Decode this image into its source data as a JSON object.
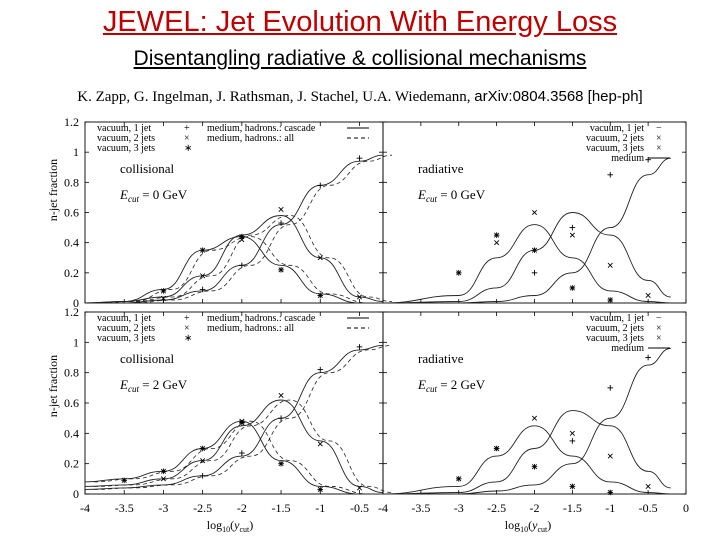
{
  "header": {
    "title": "JEWEL: Jet Evolution With Energy Loss",
    "subtitle": "Disentangling radiative & collisional mechanisms",
    "authors": "K. Zapp, G. Ingelman, J. Rathsman, J. Stachel, U.A. Wiedemann,",
    "arxiv": "arXiv:0804.3568 [hep-ph]"
  },
  "chart_data": [
    {
      "type": "line",
      "panel": "top-left",
      "title": "collisional",
      "annotation": "E_cut = 0 GeV",
      "annotation_main": "E",
      "annotation_sub": "cut",
      "annotation_rest": " = 0 GeV",
      "xlabel": "log10(ycut)",
      "ylabel": "n-jet fraction",
      "xlim": [
        -4,
        -0.2
      ],
      "ylim": [
        0,
        1.2
      ],
      "xticks": [
        "-4",
        "-3.5",
        "-3",
        "-2.5",
        "-2",
        "-1.5",
        "-1",
        "-0.5"
      ],
      "yticks": [
        "0",
        "0.2",
        "0.4",
        "0.6",
        "0.8",
        "1",
        "1.2"
      ],
      "legend": [
        "vacuum, 1 jet",
        "vacuum, 2 jets",
        "vacuum, 3 jets",
        "medium, hadrons.: cascade",
        "medium, hadrons.: all"
      ],
      "series": [
        {
          "name": "medium 1 jet",
          "style": "solid",
          "x": [
            -4,
            -3.5,
            -3,
            -2.5,
            -2,
            -1.5,
            -1,
            -0.5,
            -0.2
          ],
          "y": [
            0.0,
            0.0,
            0.02,
            0.08,
            0.25,
            0.52,
            0.78,
            0.94,
            0.98
          ]
        },
        {
          "name": "medium 2 jets",
          "style": "solid",
          "x": [
            -4,
            -3.5,
            -3,
            -2.5,
            -2,
            -1.5,
            -1,
            -0.5,
            -0.2
          ],
          "y": [
            0.0,
            0.01,
            0.04,
            0.18,
            0.45,
            0.58,
            0.3,
            0.04,
            0.01
          ]
        },
        {
          "name": "medium 3 jets",
          "style": "solid",
          "x": [
            -4,
            -3.5,
            -3,
            -2.5,
            -2,
            -1.5,
            -1,
            -0.5,
            -0.2
          ],
          "y": [
            0.0,
            0.01,
            0.09,
            0.35,
            0.44,
            0.25,
            0.06,
            0.0,
            0.0
          ]
        },
        {
          "name": "vacuum 1 jet",
          "style": "markers",
          "marker": "+",
          "x": [
            -3,
            -2.5,
            -2,
            -1.5,
            -1,
            -0.5
          ],
          "y": [
            0.02,
            0.09,
            0.25,
            0.53,
            0.78,
            0.96
          ]
        },
        {
          "name": "vacuum 2 jets",
          "style": "markers",
          "marker": "x",
          "x": [
            -3,
            -2.5,
            -2,
            -1.5,
            -1,
            -0.5
          ],
          "y": [
            0.03,
            0.18,
            0.42,
            0.62,
            0.3,
            0.04
          ]
        },
        {
          "name": "vacuum 3 jets",
          "style": "markers",
          "marker": "*",
          "x": [
            -3,
            -2.5,
            -2,
            -1.5,
            -1
          ],
          "y": [
            0.08,
            0.35,
            0.44,
            0.22,
            0.05
          ]
        }
      ]
    },
    {
      "type": "line",
      "panel": "top-right",
      "title": "radiative",
      "annotation": "E_cut = 0 GeV",
      "annotation_main": "E",
      "annotation_sub": "cut",
      "annotation_rest": " = 0 GeV",
      "xlim": [
        -4,
        0
      ],
      "ylim": [
        0,
        1.2
      ],
      "xticks": [
        "-4",
        "-3.5",
        "-3",
        "-2.5",
        "-2",
        "-1.5",
        "-1",
        "-0.5",
        "0"
      ],
      "legend": [
        "vacuum, 1 jet",
        "vacuum, 2 jets",
        "vacuum, 3 jets",
        "medium"
      ],
      "series": [
        {
          "name": "medium 1 jet",
          "style": "solid",
          "x": [
            -4,
            -3,
            -2.5,
            -2,
            -1.5,
            -1,
            -0.5,
            -0.2
          ],
          "y": [
            0.0,
            0.0,
            0.01,
            0.05,
            0.2,
            0.5,
            0.85,
            0.96
          ]
        },
        {
          "name": "medium 2 jets",
          "style": "solid",
          "x": [
            -4,
            -3,
            -2.5,
            -2,
            -1.5,
            -1,
            -0.5,
            -0.2
          ],
          "y": [
            0.0,
            0.01,
            0.1,
            0.35,
            0.6,
            0.45,
            0.15,
            0.04
          ]
        },
        {
          "name": "medium 3 jets",
          "style": "solid",
          "x": [
            -4,
            -3,
            -2.5,
            -2,
            -1.5,
            -1,
            -0.5,
            -0.2
          ],
          "y": [
            0.0,
            0.05,
            0.3,
            0.52,
            0.3,
            0.08,
            0.01,
            0.0
          ]
        },
        {
          "name": "vacuum 1 jet",
          "style": "markers",
          "marker": "+",
          "x": [
            -2,
            -1.5,
            -1,
            -0.5
          ],
          "y": [
            0.2,
            0.5,
            0.85,
            0.95
          ]
        },
        {
          "name": "vacuum 2 jets",
          "style": "markers",
          "marker": "x",
          "x": [
            -2.5,
            -2,
            -1.5,
            -1,
            -0.5
          ],
          "y": [
            0.4,
            0.6,
            0.45,
            0.25,
            0.05
          ]
        },
        {
          "name": "vacuum 3 jets",
          "style": "markers",
          "marker": "*",
          "x": [
            -3,
            -2.5,
            -2,
            -1.5,
            -1
          ],
          "y": [
            0.2,
            0.45,
            0.35,
            0.1,
            0.02
          ]
        }
      ]
    },
    {
      "type": "line",
      "panel": "bottom-left",
      "title": "collisional",
      "annotation": "E_cut = 2 GeV",
      "annotation_main": "E",
      "annotation_sub": "cut",
      "annotation_rest": " = 2 GeV",
      "xlim": [
        -4,
        -0.2
      ],
      "ylim": [
        0,
        1.2
      ],
      "xticks": [
        "-4",
        "-3.5",
        "-3",
        "-2.5",
        "-2",
        "-1.5",
        "-1",
        "-0.5"
      ],
      "yticks": [
        "0",
        "0.2",
        "0.4",
        "0.6",
        "0.8",
        "1",
        "1.2"
      ],
      "legend": [
        "vacuum, 1 jet",
        "vacuum, 2 jets",
        "vacuum, 3 jets",
        "medium, hadrons.: cascade",
        "medium, hadrons.: all"
      ],
      "series": [
        {
          "name": "medium 1 jet",
          "style": "solid",
          "x": [
            -4,
            -3.5,
            -3,
            -2.5,
            -2,
            -1.5,
            -1,
            -0.5,
            -0.2
          ],
          "y": [
            0.03,
            0.04,
            0.06,
            0.12,
            0.25,
            0.5,
            0.8,
            0.95,
            0.98
          ]
        },
        {
          "name": "medium 2 jets",
          "style": "solid",
          "x": [
            -4,
            -3.5,
            -3,
            -2.5,
            -2,
            -1.5,
            -1,
            -0.5,
            -0.2
          ],
          "y": [
            0.05,
            0.06,
            0.1,
            0.22,
            0.45,
            0.62,
            0.35,
            0.05,
            0.01
          ]
        },
        {
          "name": "medium 3 jets",
          "style": "solid",
          "x": [
            -4,
            -3.5,
            -3,
            -2.5,
            -2,
            -1.5,
            -1,
            -0.5,
            -0.2
          ],
          "y": [
            0.08,
            0.1,
            0.15,
            0.3,
            0.48,
            0.22,
            0.05,
            0.0,
            0.0
          ]
        },
        {
          "name": "vacuum 1 jet",
          "style": "markers",
          "marker": "+",
          "x": [
            -2.5,
            -2,
            -1.5,
            -1,
            -0.5
          ],
          "y": [
            0.12,
            0.27,
            0.5,
            0.82,
            0.97
          ]
        },
        {
          "name": "vacuum 2 jets",
          "style": "markers",
          "marker": "x",
          "x": [
            -3,
            -2.5,
            -2,
            -1.5,
            -1,
            -0.5
          ],
          "y": [
            0.1,
            0.22,
            0.48,
            0.65,
            0.33,
            0.04
          ]
        },
        {
          "name": "vacuum 3 jets",
          "style": "markers",
          "marker": "*",
          "x": [
            -3.5,
            -3,
            -2.5,
            -2,
            -1.5,
            -1
          ],
          "y": [
            0.09,
            0.15,
            0.3,
            0.47,
            0.2,
            0.03
          ]
        }
      ]
    },
    {
      "type": "line",
      "panel": "bottom-right",
      "title": "radiative",
      "annotation": "E_cut = 2 GeV",
      "annotation_main": "E",
      "annotation_sub": "cut",
      "annotation_rest": " = 2 GeV",
      "xlim": [
        -4,
        0
      ],
      "ylim": [
        0,
        1.2
      ],
      "xticks": [
        "-4",
        "-3.5",
        "-3",
        "-2.5",
        "-2",
        "-1.5",
        "-1",
        "-0.5",
        "0"
      ],
      "legend": [
        "vacuum, 1 jet",
        "vacuum, 2 jets",
        "vacuum, 3 jets",
        "medium"
      ],
      "series": [
        {
          "name": "medium 1 jet",
          "style": "solid",
          "x": [
            -4,
            -3,
            -2.5,
            -2,
            -1.5,
            -1,
            -0.5,
            -0.2
          ],
          "y": [
            0.0,
            0.0,
            0.02,
            0.06,
            0.2,
            0.5,
            0.85,
            0.96
          ]
        },
        {
          "name": "medium 2 jets",
          "style": "solid",
          "x": [
            -4,
            -3,
            -2.5,
            -2,
            -1.5,
            -1,
            -0.5,
            -0.2
          ],
          "y": [
            0.0,
            0.01,
            0.08,
            0.3,
            0.55,
            0.45,
            0.15,
            0.04
          ]
        },
        {
          "name": "medium 3 jets",
          "style": "solid",
          "x": [
            -4,
            -3,
            -2.5,
            -2,
            -1.5,
            -1,
            -0.5,
            -0.2
          ],
          "y": [
            0.0,
            0.05,
            0.25,
            0.45,
            0.25,
            0.08,
            0.01,
            0.0
          ]
        },
        {
          "name": "vacuum 1 jet",
          "style": "markers",
          "marker": "+",
          "x": [
            -1.5,
            -1,
            -0.5
          ],
          "y": [
            0.35,
            0.7,
            0.9
          ]
        },
        {
          "name": "vacuum 2 jets",
          "style": "markers",
          "marker": "x",
          "x": [
            -2.5,
            -2,
            -1.5,
            -1,
            -0.5
          ],
          "y": [
            0.3,
            0.5,
            0.4,
            0.25,
            0.05
          ]
        },
        {
          "name": "vacuum 3 jets",
          "style": "markers",
          "marker": "*",
          "x": [
            -3,
            -2.5,
            -2,
            -1.5,
            -1
          ],
          "y": [
            0.1,
            0.3,
            0.18,
            0.05,
            0.01
          ]
        }
      ]
    }
  ]
}
